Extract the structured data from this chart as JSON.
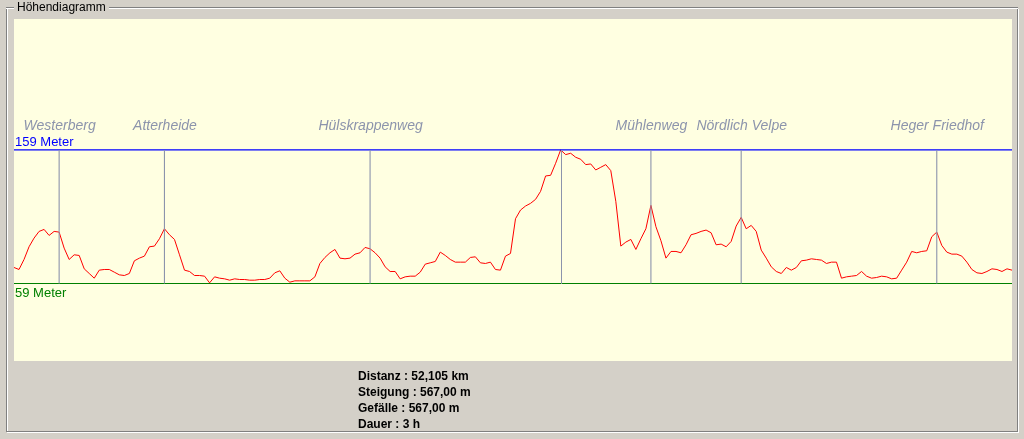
{
  "chart_data": {
    "type": "line",
    "title": "Höhendiagramm",
    "categories": [
      null,
      null,
      null,
      null,
      null,
      null,
      null,
      null,
      null,
      "Westerberg",
      null,
      null,
      null,
      null,
      null,
      null,
      null,
      null,
      null,
      null,
      null,
      null,
      null,
      null,
      null,
      null,
      null,
      null,
      null,
      null,
      "Atterheide",
      null,
      null,
      null,
      null,
      null,
      null,
      null,
      null,
      null,
      null,
      null,
      null,
      null,
      null,
      null,
      null,
      null,
      null,
      null,
      null,
      null,
      null,
      null,
      null,
      null,
      null,
      null,
      null,
      null,
      null,
      null,
      null,
      null,
      null,
      null,
      null,
      null,
      null,
      null,
      null,
      "Hülskrappenweg",
      null,
      null,
      null,
      null,
      null,
      null,
      null,
      null,
      null,
      null,
      null,
      null,
      null,
      null,
      null,
      null,
      null,
      null,
      null,
      null,
      null,
      null,
      null,
      null,
      null,
      null,
      null,
      null,
      null,
      null,
      null,
      null,
      null,
      null,
      null,
      null,
      null,
      null,
      null,
      null,
      null,
      null,
      null,
      null,
      null,
      null,
      null,
      null,
      null,
      null,
      null,
      null,
      null,
      null,
      null,
      "Mühlenweg",
      null,
      null,
      null,
      null,
      null,
      null,
      null,
      null,
      null,
      null,
      null,
      null,
      null,
      null,
      null,
      null,
      null,
      "Nördlich Velpe",
      null,
      null,
      null,
      null,
      null,
      null,
      null,
      null,
      null,
      null,
      null,
      null,
      null,
      null,
      null,
      null,
      null,
      null,
      null,
      null,
      null,
      null,
      null,
      null,
      null,
      null,
      null,
      null,
      null,
      null,
      null,
      null,
      null,
      null,
      null,
      null,
      null,
      null,
      "Heger Friedhof",
      null,
      null,
      null,
      null,
      null,
      null,
      null,
      null,
      null,
      null,
      null,
      null,
      null,
      null,
      null
    ],
    "series": [
      {
        "color": "#ff0000",
        "values": [
          71,
          69.5,
          77,
          86.5,
          93,
          98,
          99.5,
          95,
          98,
          97.5,
          85.5,
          77,
          80.5,
          80,
          70,
          66.5,
          63,
          69,
          69.5,
          69.5,
          67.5,
          65.5,
          65,
          66.5,
          76,
          78,
          79.5,
          86.5,
          87,
          92.5,
          100,
          95.5,
          92,
          80.5,
          69,
          68,
          65,
          65,
          64.5,
          59.5,
          64,
          63,
          62.5,
          61.5,
          62.5,
          62,
          62,
          61.5,
          61.5,
          62,
          62,
          63,
          67,
          68.5,
          63,
          60,
          61,
          61,
          61,
          61,
          64,
          74,
          78.5,
          82,
          84.5,
          78,
          77.5,
          78,
          81,
          82,
          86,
          85,
          82,
          78,
          71.5,
          68,
          68,
          62.5,
          64,
          64.5,
          64.5,
          67.5,
          73.5,
          74.5,
          75.5,
          82.5,
          80,
          77,
          75,
          75,
          75,
          78.5,
          79,
          74.5,
          74,
          75,
          69.5,
          69,
          79.5,
          81.5,
          107.5,
          114,
          117,
          119,
          122,
          128,
          139.5,
          140,
          149,
          159,
          155.5,
          156.5,
          153.5,
          152,
          148,
          148.5,
          144,
          146,
          148,
          143.5,
          120.5,
          87,
          90,
          92,
          84.5,
          92.5,
          100,
          117.5,
          101.5,
          91,
          78,
          83,
          83,
          82,
          88,
          95.5,
          96.5,
          98,
          99,
          97,
          88,
          88.5,
          86.5,
          90.5,
          102,
          108.5,
          100,
          102.5,
          98,
          84,
          78,
          71.5,
          68,
          66.5,
          71,
          69,
          71,
          76,
          76.5,
          77.5,
          77,
          76.5,
          74,
          75,
          75,
          63,
          64,
          64.5,
          65,
          68,
          64.5,
          63,
          63.5,
          64.5,
          64,
          62.5,
          63,
          69,
          75,
          83,
          82,
          83,
          83.5,
          94,
          97.5,
          87.5,
          82.5,
          81,
          81,
          79.5,
          75,
          69.5,
          67,
          66.5,
          68,
          70,
          69.5,
          68,
          70,
          69
        ]
      }
    ],
    "ylim": [
      1,
      257
    ],
    "tick_labels": "x",
    "ref_lines": [
      {
        "axis": "y",
        "value": 159,
        "label": "159 Meter",
        "color": "#0000ff"
      },
      {
        "axis": "y",
        "value": 59,
        "label": "59 Meter",
        "color": "#008000"
      },
      {
        "axis": "x",
        "value": "Westerberg",
        "color": "#8c94ac"
      },
      {
        "axis": "x",
        "value": "Atterheide",
        "color": "#8c94ac"
      },
      {
        "axis": "x",
        "value": "Hülskrappenweg",
        "color": "#8c94ac"
      },
      {
        "axis": "x",
        "value": "Mühlenweg",
        "color": "#8c94ac"
      },
      {
        "axis": "x",
        "value": "Nördlich Velpe",
        "color": "#8c94ac"
      },
      {
        "axis": "x",
        "value": "Heger Friedhof",
        "color": "#8c94ac"
      }
    ],
    "annotations": [
      "Distanz : 52,105 km",
      "Steigung : 567,00 m",
      "Gefälle : 567,00 m",
      "Dauer : 3 h"
    ]
  }
}
